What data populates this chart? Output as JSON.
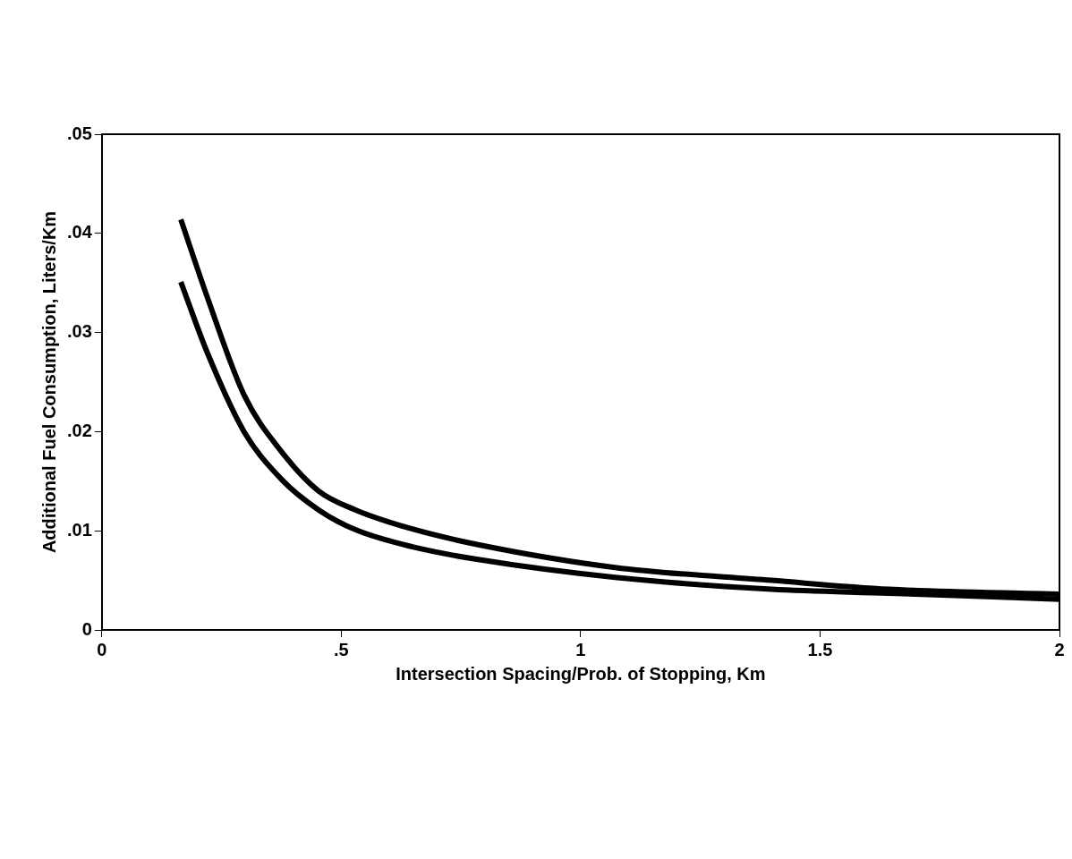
{
  "chart_data": {
    "type": "line",
    "xlabel": "Intersection Spacing/Prob. of Stopping, Km",
    "ylabel": "Additional Fuel Consumption, Liters/Km",
    "xlim": [
      0,
      2
    ],
    "xticks": [
      0,
      {
        "value": 0.5,
        "label": ".5"
      },
      1,
      1.5,
      2
    ],
    "ylim": [
      0,
      0.05
    ],
    "yticks": [
      0,
      {
        "value": 0.01,
        "label": ".01"
      },
      {
        "value": 0.02,
        "label": ".02"
      },
      {
        "value": 0.03,
        "label": ".03"
      },
      {
        "value": 0.04,
        "label": ".04"
      },
      {
        "value": 0.05,
        "label": ".05"
      }
    ],
    "grid": false,
    "legend": false,
    "marker": "none",
    "line_style": "solid",
    "series": [
      {
        "color": "#000000",
        "x": [
          0.165,
          0.22,
          0.297,
          0.375,
          0.453,
          0.53,
          0.647,
          0.786,
          1.072,
          1.399,
          1.644,
          2.0
        ],
        "values": [
          0.0414,
          0.0336,
          0.0237,
          0.018,
          0.014,
          0.0121,
          0.0102,
          0.0086,
          0.0063,
          0.005,
          0.0041,
          0.0036
        ]
      },
      {
        "color": "#000000",
        "x": [
          0.165,
          0.22,
          0.297,
          0.375,
          0.453,
          0.53,
          0.647,
          0.786,
          1.072,
          1.399,
          1.644,
          2.0
        ],
        "values": [
          0.0351,
          0.028,
          0.02,
          0.0152,
          0.0121,
          0.0101,
          0.0084,
          0.0071,
          0.0053,
          0.0041,
          0.0037,
          0.0031
        ]
      }
    ]
  }
}
